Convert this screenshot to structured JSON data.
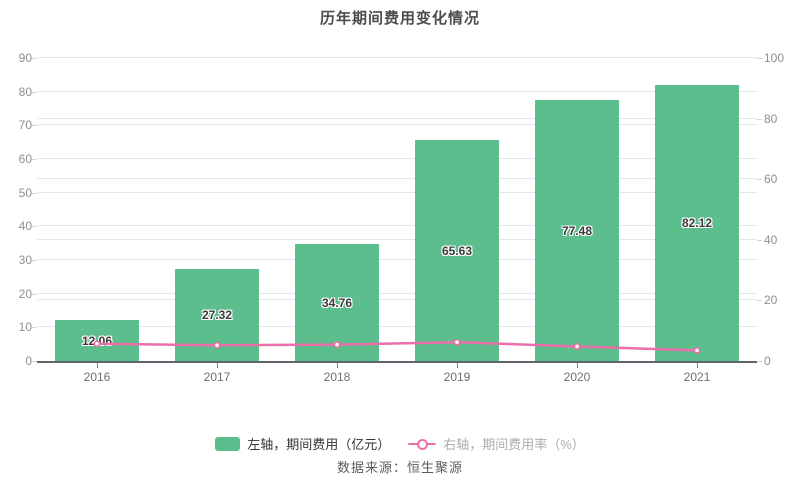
{
  "chart_data": {
    "type": "bar",
    "title": "历年期间费用变化情况",
    "categories": [
      "2016",
      "2017",
      "2018",
      "2019",
      "2020",
      "2021"
    ],
    "series": [
      {
        "name": "左轴，期间费用（亿元）",
        "type": "bar",
        "axis": "left",
        "values": [
          12.06,
          27.32,
          34.76,
          65.63,
          77.48,
          82.12
        ],
        "labels": [
          "12.06",
          "27.32",
          "34.76",
          "65.63",
          "77.48",
          "82.12"
        ],
        "color": "#5cbe8c"
      },
      {
        "name": "右轴，期间费用率（%）",
        "type": "line",
        "axis": "right",
        "values": [
          5.7,
          5.2,
          5.4,
          6.2,
          4.8,
          3.5
        ],
        "color": "#ec6eaa",
        "marker": "hollow-circle"
      }
    ],
    "left_axis": {
      "min": 0,
      "max": 90,
      "ticks": [
        0,
        10,
        20,
        30,
        40,
        50,
        60,
        70,
        80,
        90
      ]
    },
    "right_axis": {
      "min": 0,
      "max": 100,
      "ticks": [
        0,
        20,
        40,
        60,
        80,
        100
      ]
    },
    "grid": true,
    "grid_color": "#e1e7f2",
    "legend_position": "bottom",
    "legend": [
      {
        "label": "左轴，期间费用（亿元）",
        "swatch": "bar-swatch",
        "color": "#5cbe8c"
      },
      {
        "label": "右轴，期间费用率（%）",
        "swatch": "line-with-ring",
        "color": "#ec6eaa",
        "label_color": "#ababab"
      }
    ],
    "source": "数据来源：恒生聚源"
  }
}
